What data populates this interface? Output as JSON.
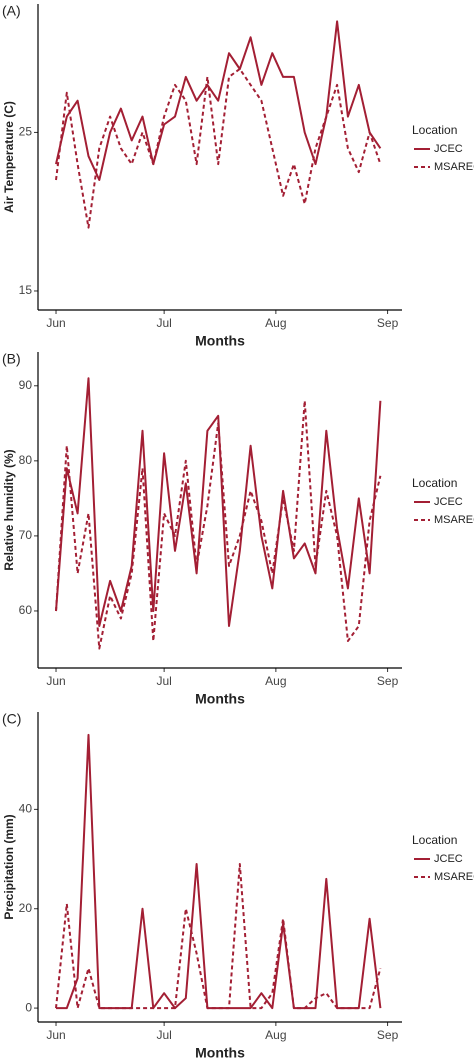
{
  "chart_data": [
    {
      "type": "line",
      "panel_label": "(A)",
      "y_label": "Air Temperature (C)",
      "x_label": "Months",
      "legend_title": "Location",
      "xlim": [
        -5,
        96
      ],
      "xticks": [
        {
          "value": 0,
          "label": "Jun"
        },
        {
          "value": 30,
          "label": "Jul"
        },
        {
          "value": 61,
          "label": "Aug"
        },
        {
          "value": 92,
          "label": "Sep"
        }
      ],
      "ylim": [
        13.8,
        33.1
      ],
      "yticks": [
        15,
        25
      ],
      "grid": false,
      "x": [
        0,
        3,
        6,
        9,
        12,
        15,
        18,
        21,
        24,
        27,
        30,
        33,
        36,
        39,
        42,
        45,
        48,
        51,
        54,
        57,
        60,
        63,
        66,
        69,
        72,
        75,
        78,
        81,
        84,
        87,
        90
      ],
      "series": [
        {
          "name": "JCEC",
          "color": "#a31f34",
          "line_style": "solid",
          "values": [
            23,
            26,
            27,
            23.5,
            22,
            25,
            26.5,
            24.5,
            26,
            23,
            25.5,
            26,
            28.5,
            27,
            28,
            27,
            30,
            29,
            31,
            28,
            30,
            28.5,
            28.5,
            25,
            23,
            26,
            32,
            26,
            28,
            25,
            24
          ]
        },
        {
          "name": "MSAREC",
          "color": "#a31f34",
          "line_style": "dashed",
          "values": [
            22,
            27.5,
            23,
            19,
            24,
            26,
            24,
            23,
            25,
            23,
            26,
            28,
            27,
            23,
            28.5,
            23,
            28.5,
            29,
            28,
            27,
            24,
            21,
            23,
            20.5,
            24,
            26,
            28,
            24,
            22.5,
            25,
            23
          ]
        }
      ]
    },
    {
      "type": "line",
      "panel_label": "(B)",
      "y_label": "Relative humidity (%)",
      "x_label": "Months",
      "legend_title": "Location",
      "xlim": [
        -5,
        96
      ],
      "xticks": [
        {
          "value": 0,
          "label": "Jun"
        },
        {
          "value": 30,
          "label": "Jul"
        },
        {
          "value": 61,
          "label": "Aug"
        },
        {
          "value": 92,
          "label": "Sep"
        }
      ],
      "ylim": [
        52.4,
        94.5
      ],
      "yticks": [
        60,
        70,
        80,
        90
      ],
      "grid": false,
      "x": [
        0,
        3,
        6,
        9,
        12,
        15,
        18,
        21,
        24,
        27,
        30,
        33,
        36,
        39,
        42,
        45,
        48,
        51,
        54,
        57,
        60,
        63,
        66,
        69,
        72,
        75,
        78,
        81,
        84,
        87,
        90
      ],
      "series": [
        {
          "name": "JCEC",
          "color": "#a31f34",
          "line_style": "solid",
          "values": [
            60,
            79,
            73,
            91,
            58,
            64,
            60,
            66,
            84,
            60,
            81,
            68,
            77,
            65,
            84,
            86,
            58,
            68,
            82,
            70,
            63,
            76,
            67,
            69,
            65,
            84,
            71,
            63,
            75,
            65,
            88
          ]
        },
        {
          "name": "MSAREC",
          "color": "#a31f34",
          "line_style": "dashed",
          "values": [
            60,
            82,
            65,
            73,
            55,
            62,
            59,
            65,
            79,
            56,
            73,
            70,
            80,
            66,
            74,
            85,
            66,
            70,
            76,
            72,
            65,
            75,
            68,
            88,
            66,
            76,
            70,
            56,
            58,
            72,
            78
          ]
        }
      ]
    },
    {
      "type": "line",
      "panel_label": "(C)",
      "y_label": "Precipitation (mm)",
      "x_label": "Months",
      "legend_title": "Location",
      "xlim": [
        -5,
        96
      ],
      "xticks": [
        {
          "value": 0,
          "label": "Jun"
        },
        {
          "value": 30,
          "label": "Jul"
        },
        {
          "value": 61,
          "label": "Aug"
        },
        {
          "value": 92,
          "label": "Sep"
        }
      ],
      "ylim": [
        -2.8,
        59.6
      ],
      "yticks": [
        0,
        20,
        40
      ],
      "grid": false,
      "x": [
        0,
        3,
        6,
        9,
        12,
        15,
        18,
        21,
        24,
        27,
        30,
        33,
        36,
        39,
        42,
        45,
        48,
        51,
        54,
        57,
        60,
        63,
        66,
        69,
        72,
        75,
        78,
        81,
        84,
        87,
        90
      ],
      "series": [
        {
          "name": "JCEC",
          "color": "#a31f34",
          "line_style": "solid",
          "values": [
            0,
            0,
            6,
            55,
            0,
            0,
            0,
            0,
            20,
            0,
            3,
            0,
            2,
            29,
            0,
            0,
            0,
            0,
            0,
            3,
            0,
            17,
            0,
            0,
            0,
            26,
            0,
            0,
            0,
            18,
            0
          ]
        },
        {
          "name": "MSAREC",
          "color": "#a31f34",
          "line_style": "dashed",
          "values": [
            0,
            21,
            0,
            8,
            0,
            0,
            0,
            0,
            0,
            0,
            0,
            0,
            20,
            11,
            0,
            0,
            0,
            29,
            0,
            0,
            3,
            18,
            0,
            0,
            2,
            3,
            0,
            0,
            0,
            0,
            8
          ]
        }
      ]
    }
  ]
}
